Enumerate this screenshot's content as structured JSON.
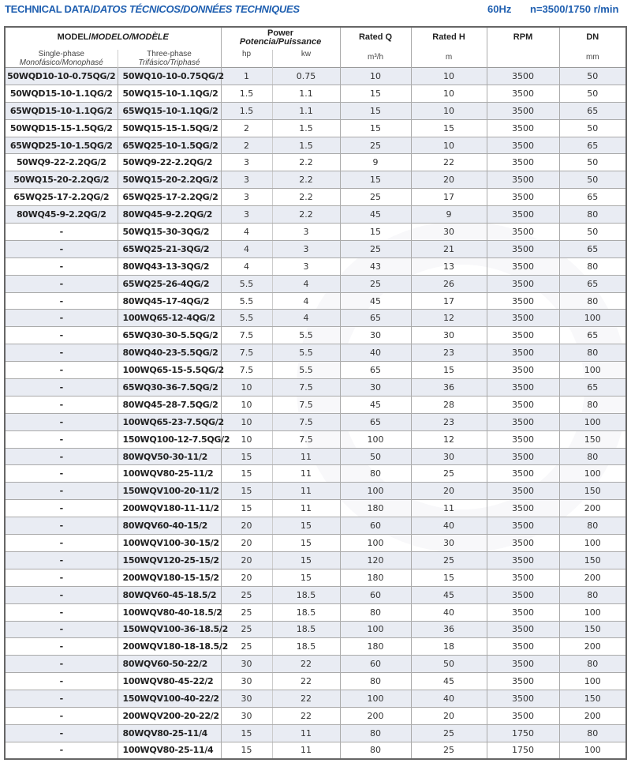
{
  "header": {
    "title_main": "TECHNICAL DATA/",
    "title_alt": "DATOS TÉCNICOS/DONNÉES TECHNIQUES",
    "frequency": "60Hz",
    "speed": "n=3500/1750 r/min"
  },
  "columns": {
    "model": "MODEL/",
    "model_alt": "MODELO/MODÈLE",
    "single_phase": "Single-phase",
    "single_phase_alt": "Monofásico/Monophasé",
    "three_phase": "Three-phase",
    "three_phase_alt": "Trifásico/Triphasé",
    "power": "Power",
    "power_alt": "Potencia/Puissance",
    "hp": "hp",
    "kw": "kw",
    "rated_q": "Rated Q",
    "rated_q_unit": "m³/h",
    "rated_h": "Rated H",
    "rated_h_unit": "m",
    "rpm": "RPM",
    "dn": "DN",
    "dn_unit": "mm"
  },
  "rows": [
    [
      "50WQD10-10-0.75QG/2",
      "50WQ10-10-0.75QG/2",
      "1",
      "0.75",
      "10",
      "10",
      "3500",
      "50"
    ],
    [
      "50WQD15-10-1.1QG/2",
      "50WQ15-10-1.1QG/2",
      "1.5",
      "1.1",
      "15",
      "10",
      "3500",
      "50"
    ],
    [
      "65WQD15-10-1.1QG/2",
      "65WQ15-10-1.1QG/2",
      "1.5",
      "1.1",
      "15",
      "10",
      "3500",
      "65"
    ],
    [
      "50WQD15-15-1.5QG/2",
      "50WQ15-15-1.5QG/2",
      "2",
      "1.5",
      "15",
      "15",
      "3500",
      "50"
    ],
    [
      "65WQD25-10-1.5QG/2",
      "65WQ25-10-1.5QG/2",
      "2",
      "1.5",
      "25",
      "10",
      "3500",
      "65"
    ],
    [
      "50WQ9-22-2.2QG/2",
      "50WQ9-22-2.2QG/2",
      "3",
      "2.2",
      "9",
      "22",
      "3500",
      "50"
    ],
    [
      "50WQ15-20-2.2QG/2",
      "50WQ15-20-2.2QG/2",
      "3",
      "2.2",
      "15",
      "20",
      "3500",
      "50"
    ],
    [
      "65WQ25-17-2.2QG/2",
      "65WQ25-17-2.2QG/2",
      "3",
      "2.2",
      "25",
      "17",
      "3500",
      "65"
    ],
    [
      "80WQ45-9-2.2QG/2",
      "80WQ45-9-2.2QG/2",
      "3",
      "2.2",
      "45",
      "9",
      "3500",
      "80"
    ],
    [
      "-",
      "50WQ15-30-3QG/2",
      "4",
      "3",
      "15",
      "30",
      "3500",
      "50"
    ],
    [
      "-",
      "65WQ25-21-3QG/2",
      "4",
      "3",
      "25",
      "21",
      "3500",
      "65"
    ],
    [
      "-",
      "80WQ43-13-3QG/2",
      "4",
      "3",
      "43",
      "13",
      "3500",
      "80"
    ],
    [
      "-",
      "65WQ25-26-4QG/2",
      "5.5",
      "4",
      "25",
      "26",
      "3500",
      "65"
    ],
    [
      "-",
      "80WQ45-17-4QG/2",
      "5.5",
      "4",
      "45",
      "17",
      "3500",
      "80"
    ],
    [
      "-",
      "100WQ65-12-4QG/2",
      "5.5",
      "4",
      "65",
      "12",
      "3500",
      "100"
    ],
    [
      "-",
      "65WQ30-30-5.5QG/2",
      "7.5",
      "5.5",
      "30",
      "30",
      "3500",
      "65"
    ],
    [
      "-",
      "80WQ40-23-5.5QG/2",
      "7.5",
      "5.5",
      "40",
      "23",
      "3500",
      "80"
    ],
    [
      "-",
      "100WQ65-15-5.5QG/2",
      "7.5",
      "5.5",
      "65",
      "15",
      "3500",
      "100"
    ],
    [
      "-",
      "65WQ30-36-7.5QG/2",
      "10",
      "7.5",
      "30",
      "36",
      "3500",
      "65"
    ],
    [
      "-",
      "80WQ45-28-7.5QG/2",
      "10",
      "7.5",
      "45",
      "28",
      "3500",
      "80"
    ],
    [
      "-",
      "100WQ65-23-7.5QG/2",
      "10",
      "7.5",
      "65",
      "23",
      "3500",
      "100"
    ],
    [
      "-",
      "150WQ100-12-7.5QG/2",
      "10",
      "7.5",
      "100",
      "12",
      "3500",
      "150"
    ],
    [
      "-",
      "80WQV50-30-11/2",
      "15",
      "11",
      "50",
      "30",
      "3500",
      "80"
    ],
    [
      "-",
      "100WQV80-25-11/2",
      "15",
      "11",
      "80",
      "25",
      "3500",
      "100"
    ],
    [
      "-",
      "150WQV100-20-11/2",
      "15",
      "11",
      "100",
      "20",
      "3500",
      "150"
    ],
    [
      "-",
      "200WQV180-11-11/2",
      "15",
      "11",
      "180",
      "11",
      "3500",
      "200"
    ],
    [
      "-",
      "80WQV60-40-15/2",
      "20",
      "15",
      "60",
      "40",
      "3500",
      "80"
    ],
    [
      "-",
      "100WQV100-30-15/2",
      "20",
      "15",
      "100",
      "30",
      "3500",
      "100"
    ],
    [
      "-",
      "150WQV120-25-15/2",
      "20",
      "15",
      "120",
      "25",
      "3500",
      "150"
    ],
    [
      "-",
      "200WQV180-15-15/2",
      "20",
      "15",
      "180",
      "15",
      "3500",
      "200"
    ],
    [
      "-",
      "80WQV60-45-18.5/2",
      "25",
      "18.5",
      "60",
      "45",
      "3500",
      "80"
    ],
    [
      "-",
      "100WQV80-40-18.5/2",
      "25",
      "18.5",
      "80",
      "40",
      "3500",
      "100"
    ],
    [
      "-",
      "150WQV100-36-18.5/2",
      "25",
      "18.5",
      "100",
      "36",
      "3500",
      "150"
    ],
    [
      "-",
      "200WQV180-18-18.5/2",
      "25",
      "18.5",
      "180",
      "18",
      "3500",
      "200"
    ],
    [
      "-",
      "80WQV60-50-22/2",
      "30",
      "22",
      "60",
      "50",
      "3500",
      "80"
    ],
    [
      "-",
      "100WQV80-45-22/2",
      "30",
      "22",
      "80",
      "45",
      "3500",
      "100"
    ],
    [
      "-",
      "150WQV100-40-22/2",
      "30",
      "22",
      "100",
      "40",
      "3500",
      "150"
    ],
    [
      "-",
      "200WQV200-20-22/2",
      "30",
      "22",
      "200",
      "20",
      "3500",
      "200"
    ],
    [
      "-",
      "80WQV80-25-11/4",
      "15",
      "11",
      "80",
      "25",
      "1750",
      "80"
    ],
    [
      "-",
      "100WQV80-25-11/4",
      "15",
      "11",
      "80",
      "25",
      "1750",
      "100"
    ]
  ]
}
